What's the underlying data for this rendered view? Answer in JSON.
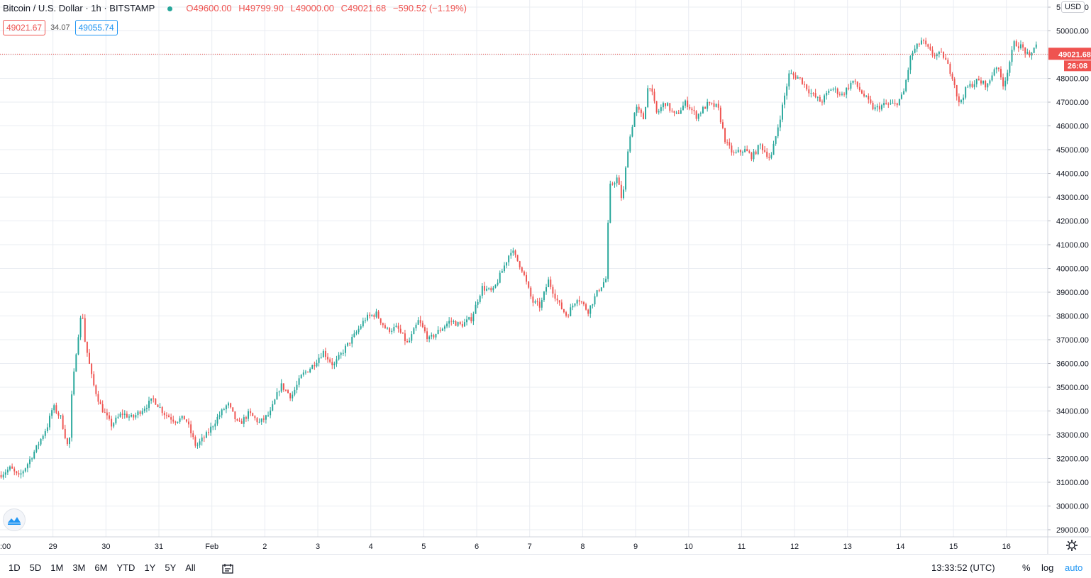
{
  "header": {
    "symbol": "Bitcoin / U.S. Dollar · 1h · BITSTAMP",
    "open": "O49600.00",
    "high": "H49799.90",
    "low": "L49000.00",
    "close": "C49021.68",
    "change": "−590.52 (−1.19%)",
    "bid": "49021.67",
    "spread": "34.07",
    "ask": "49055.74"
  },
  "currency": "USD",
  "last_price_label": "49021.68",
  "countdown": "26:08",
  "bottom": {
    "ranges": [
      "1D",
      "5D",
      "1M",
      "3M",
      "6M",
      "YTD",
      "1Y",
      "5Y",
      "All"
    ],
    "clock": "13:33:52 (UTC)",
    "percent": "%",
    "log": "log",
    "auto": "auto"
  },
  "icons": [
    "tradingview-logo-icon",
    "compare-icon",
    "settings-gear-icon"
  ],
  "colors": {
    "up": "#26a69a",
    "down": "#ef5350",
    "grid": "#e9ecf2",
    "axis_text": "#131722"
  },
  "chart_data": {
    "type": "candlestick",
    "title": "Bitcoin / U.S. Dollar · 1h · BITSTAMP",
    "interval": "1h",
    "ylim": [
      28700,
      51300
    ],
    "y_ticks": [
      29000,
      30000,
      31000,
      32000,
      33000,
      34000,
      35000,
      36000,
      37000,
      38000,
      39000,
      40000,
      41000,
      42000,
      43000,
      44000,
      45000,
      46000,
      47000,
      48000,
      49000,
      50000,
      51000
    ],
    "y_tick_labels": [
      "29000.00",
      "30000.00",
      "31000.00",
      "32000.00",
      "33000.00",
      "34000.00",
      "35000.00",
      "36000.00",
      "37000.00",
      "38000.00",
      "39000.00",
      "40000.00",
      "41000.00",
      "42000.00",
      "43000.00",
      "44000.00",
      "45000.00",
      "46000.00",
      "47000.00",
      "48000.00",
      "49000.00",
      "50000.00",
      "51000.00"
    ],
    "x_tick_labels": [
      ":00",
      "29",
      "30",
      "31",
      "Feb",
      "2",
      "3",
      "4",
      "5",
      "6",
      "7",
      "8",
      "9",
      "10",
      "11",
      "12",
      "13",
      "14",
      "15",
      "16"
    ],
    "x_tick_days": [
      28.0,
      29,
      30,
      31,
      32,
      33,
      34,
      35,
      36,
      37,
      38,
      39,
      40,
      41,
      42,
      43,
      44,
      45,
      46,
      47
    ],
    "x_range_days": [
      28.0,
      47.78
    ],
    "grid": true,
    "last_price": 49021.68,
    "price_path": [
      [
        28.0,
        31300
      ],
      [
        28.2,
        31600
      ],
      [
        28.35,
        31200
      ],
      [
        28.5,
        31700
      ],
      [
        28.7,
        32500
      ],
      [
        28.9,
        33400
      ],
      [
        29.0,
        34200
      ],
      [
        29.15,
        33700
      ],
      [
        29.3,
        32300
      ],
      [
        29.35,
        34500
      ],
      [
        29.45,
        36800
      ],
      [
        29.55,
        38300
      ],
      [
        29.6,
        37000
      ],
      [
        29.75,
        35200
      ],
      [
        29.9,
        34200
      ],
      [
        30.1,
        33400
      ],
      [
        30.3,
        33900
      ],
      [
        30.5,
        33700
      ],
      [
        30.7,
        34100
      ],
      [
        30.9,
        34500
      ],
      [
        31.1,
        33900
      ],
      [
        31.3,
        33600
      ],
      [
        31.5,
        33700
      ],
      [
        31.7,
        32500
      ],
      [
        31.9,
        33000
      ],
      [
        32.1,
        33700
      ],
      [
        32.3,
        34300
      ],
      [
        32.5,
        33400
      ],
      [
        32.7,
        33900
      ],
      [
        32.9,
        33500
      ],
      [
        33.1,
        33900
      ],
      [
        33.3,
        35100
      ],
      [
        33.5,
        34600
      ],
      [
        33.7,
        35500
      ],
      [
        33.9,
        35900
      ],
      [
        34.1,
        36500
      ],
      [
        34.3,
        35900
      ],
      [
        34.5,
        36600
      ],
      [
        34.7,
        37200
      ],
      [
        34.9,
        37900
      ],
      [
        35.1,
        38100
      ],
      [
        35.3,
        37400
      ],
      [
        35.5,
        37500
      ],
      [
        35.7,
        36800
      ],
      [
        35.9,
        37800
      ],
      [
        36.1,
        37000
      ],
      [
        36.3,
        37400
      ],
      [
        36.5,
        37800
      ],
      [
        36.7,
        37600
      ],
      [
        36.9,
        37900
      ],
      [
        37.1,
        39200
      ],
      [
        37.3,
        39000
      ],
      [
        37.5,
        40000
      ],
      [
        37.65,
        40800
      ],
      [
        37.85,
        40000
      ],
      [
        38.05,
        38600
      ],
      [
        38.2,
        38400
      ],
      [
        38.35,
        39500
      ],
      [
        38.55,
        38500
      ],
      [
        38.7,
        38000
      ],
      [
        38.9,
        38800
      ],
      [
        39.1,
        38200
      ],
      [
        39.3,
        39100
      ],
      [
        39.45,
        39600
      ],
      [
        39.5,
        43400
      ],
      [
        39.65,
        43800
      ],
      [
        39.75,
        42800
      ],
      [
        39.85,
        45000
      ],
      [
        40.0,
        46800
      ],
      [
        40.15,
        46300
      ],
      [
        40.25,
        47900
      ],
      [
        40.4,
        46500
      ],
      [
        40.55,
        47000
      ],
      [
        40.75,
        46400
      ],
      [
        40.95,
        47000
      ],
      [
        41.15,
        46400
      ],
      [
        41.35,
        46900
      ],
      [
        41.55,
        46800
      ],
      [
        41.7,
        45300
      ],
      [
        41.85,
        44800
      ],
      [
        42.05,
        45000
      ],
      [
        42.2,
        44700
      ],
      [
        42.35,
        45200
      ],
      [
        42.55,
        44600
      ],
      [
        42.75,
        46600
      ],
      [
        42.9,
        48200
      ],
      [
        43.1,
        48000
      ],
      [
        43.3,
        47400
      ],
      [
        43.5,
        47000
      ],
      [
        43.7,
        47600
      ],
      [
        43.9,
        47300
      ],
      [
        44.1,
        47900
      ],
      [
        44.3,
        47300
      ],
      [
        44.5,
        46700
      ],
      [
        44.7,
        46900
      ],
      [
        44.9,
        46900
      ],
      [
        45.05,
        47300
      ],
      [
        45.2,
        49000
      ],
      [
        45.4,
        49600
      ],
      [
        45.6,
        49000
      ],
      [
        45.8,
        49000
      ],
      [
        46.0,
        48000
      ],
      [
        46.1,
        46900
      ],
      [
        46.25,
        47600
      ],
      [
        46.45,
        47900
      ],
      [
        46.65,
        47700
      ],
      [
        46.8,
        48600
      ],
      [
        46.95,
        47700
      ],
      [
        47.15,
        49500
      ],
      [
        47.3,
        49300
      ],
      [
        47.45,
        48800
      ],
      [
        47.55,
        49600
      ],
      [
        47.6,
        49021.68
      ]
    ]
  }
}
